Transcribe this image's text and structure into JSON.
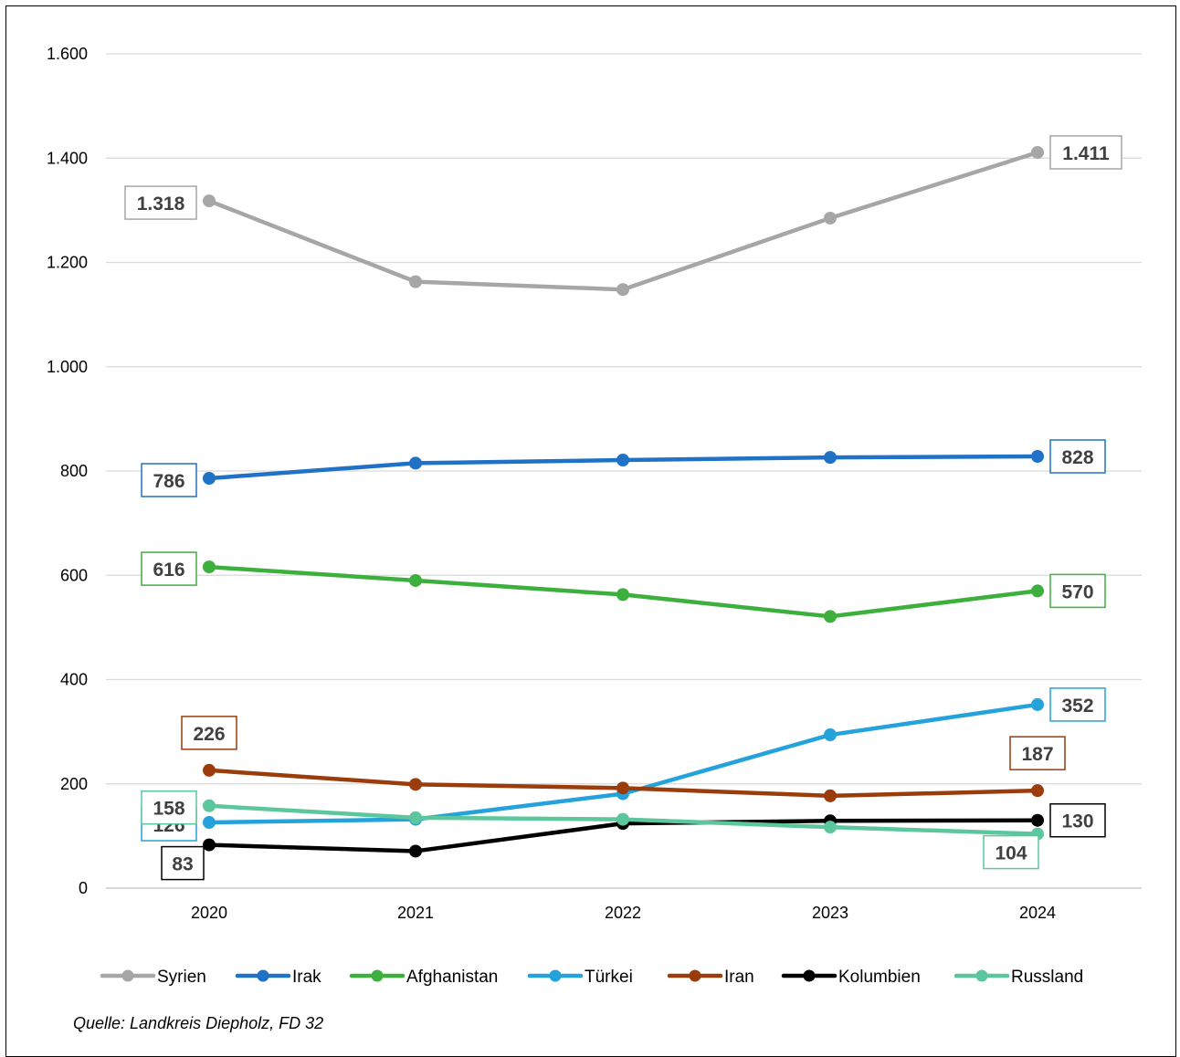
{
  "chart_data": {
    "type": "line",
    "title": "",
    "xlabel": "",
    "ylabel": "",
    "x": [
      "2020",
      "2021",
      "2022",
      "2023",
      "2024"
    ],
    "ylim": [
      0,
      1600
    ],
    "yticks": [
      0,
      200,
      400,
      600,
      800,
      1000,
      1200,
      1400,
      1600
    ],
    "ytick_labels": [
      "0",
      "200",
      "400",
      "600",
      "800",
      "1.000",
      "1.200",
      "1.400",
      "1.600"
    ],
    "grid": "horizontal",
    "legend_position": "bottom",
    "series": [
      {
        "name": "Syrien",
        "color": "#a6a6a6",
        "values": [
          1318,
          1163,
          1148,
          1285,
          1411
        ],
        "labels": [
          {
            "index": 0,
            "text": "1.318",
            "pos": "left"
          },
          {
            "index": 4,
            "text": "1.411",
            "pos": "right"
          }
        ]
      },
      {
        "name": "Irak",
        "color": "#1f72c6",
        "values": [
          786,
          815,
          821,
          826,
          828
        ],
        "labels": [
          {
            "index": 0,
            "text": "786",
            "pos": "left"
          },
          {
            "index": 4,
            "text": "828",
            "pos": "right"
          }
        ]
      },
      {
        "name": "Afghanistan",
        "color": "#3daf3d",
        "values": [
          616,
          590,
          563,
          521,
          570
        ],
        "labels": [
          {
            "index": 0,
            "text": "616",
            "pos": "left"
          },
          {
            "index": 4,
            "text": "570",
            "pos": "right"
          }
        ]
      },
      {
        "name": "Türkei",
        "color": "#24a2dc",
        "values": [
          126,
          132,
          181,
          294,
          352
        ],
        "labels": [
          {
            "index": 0,
            "text": "126",
            "pos": "left"
          },
          {
            "index": 4,
            "text": "352",
            "pos": "right"
          }
        ]
      },
      {
        "name": "Iran",
        "color": "#9a3c0b",
        "values": [
          226,
          199,
          192,
          177,
          187
        ],
        "labels": [
          {
            "index": 0,
            "text": "226",
            "pos": "above"
          },
          {
            "index": 4,
            "text": "187",
            "pos": "above"
          }
        ]
      },
      {
        "name": "Kolumbien",
        "color": "#000000",
        "values": [
          83,
          71,
          124,
          129,
          130
        ],
        "labels": [
          {
            "index": 0,
            "text": "83",
            "pos": "below"
          },
          {
            "index": 4,
            "text": "130",
            "pos": "right"
          }
        ]
      },
      {
        "name": "Russland",
        "color": "#5cc79c",
        "values": [
          158,
          135,
          132,
          117,
          104
        ],
        "labels": [
          {
            "index": 0,
            "text": "158",
            "pos": "left"
          },
          {
            "index": 4,
            "text": "104",
            "pos": "below"
          }
        ]
      }
    ]
  },
  "source": "Quelle: Landkreis Diepholz, FD 32"
}
